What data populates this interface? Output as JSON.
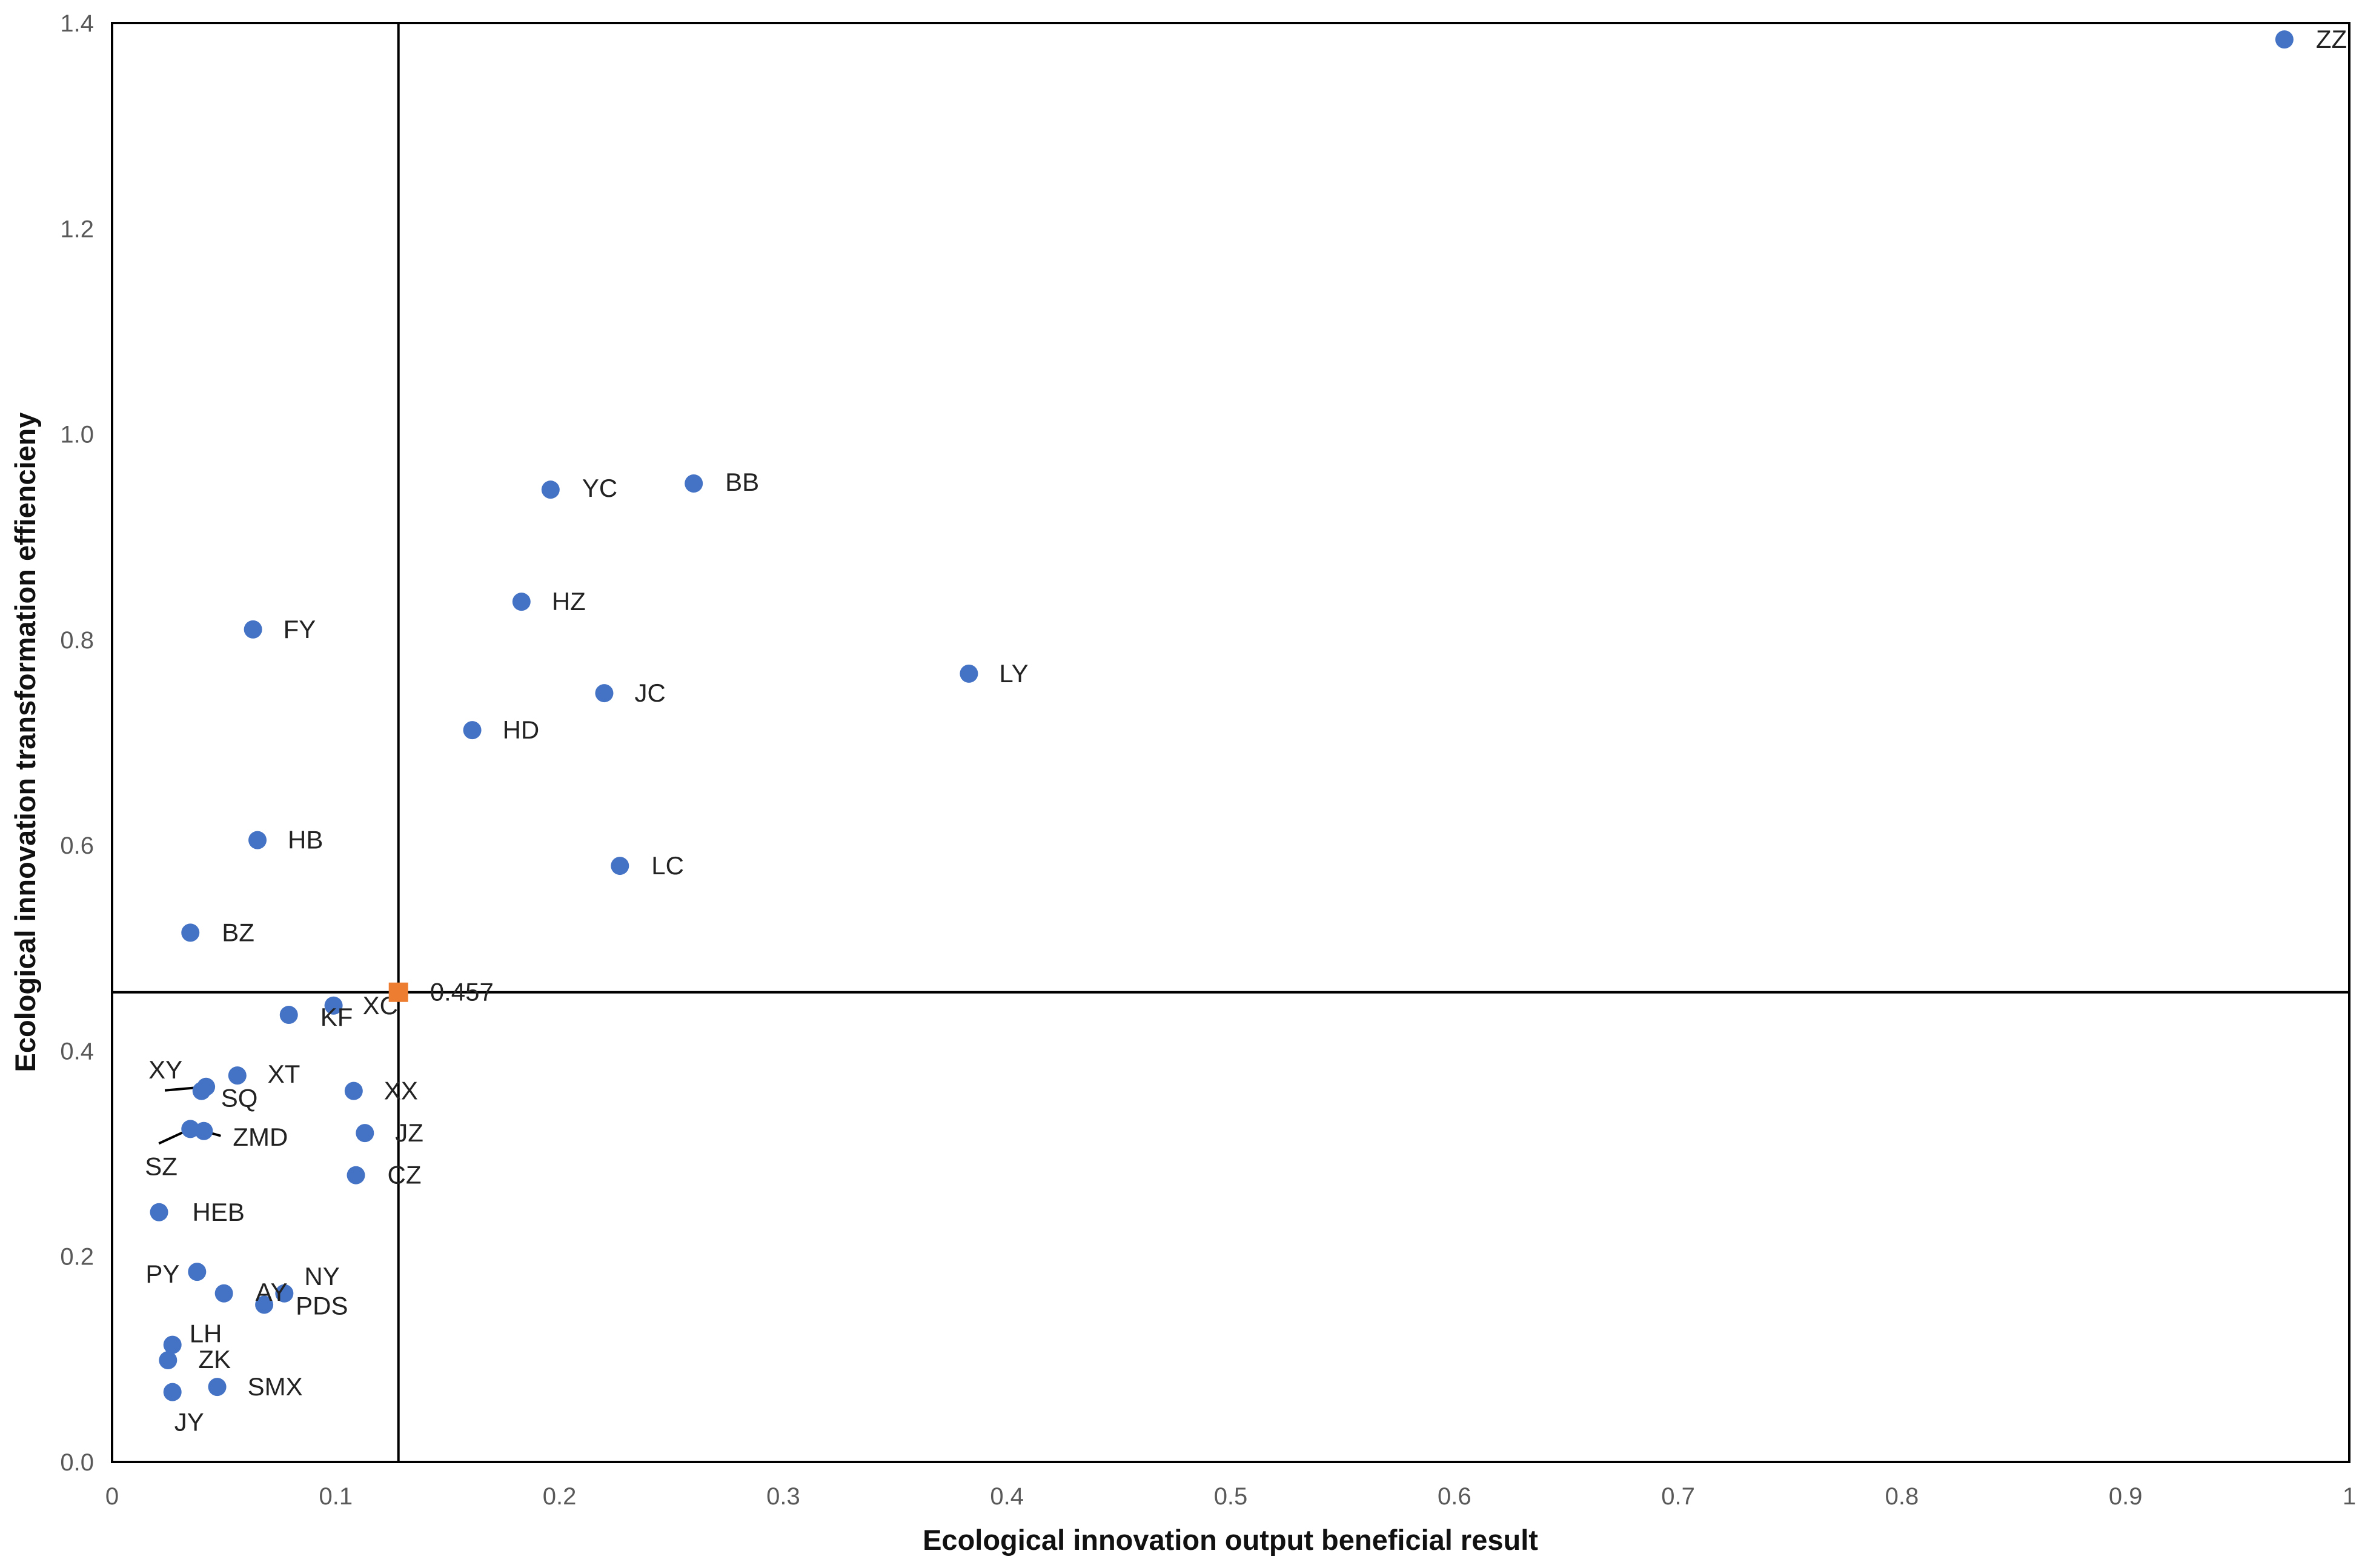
{
  "chart_data": {
    "type": "scatter",
    "title": "",
    "xlabel": "Ecological innovation output beneficial result",
    "ylabel": "Ecological innovation transformation effiencieny",
    "xlim": [
      0,
      1
    ],
    "ylim": [
      0,
      1.4
    ],
    "xticks": [
      "0",
      "0.1",
      "0.2",
      "0.3",
      "0.4",
      "0.5",
      "0.6",
      "0.7",
      "0.8",
      "0.9",
      "1"
    ],
    "yticks": [
      "0.0",
      "0.2",
      "0.4",
      "0.6",
      "0.8",
      "1.0",
      "1.2",
      "1.4"
    ],
    "grid": false,
    "legend": "none",
    "colors": {
      "points": "#4472C4",
      "reference": "#ED7D31",
      "lines": "#000000"
    },
    "reference_point": {
      "x": 0.128,
      "y": 0.457,
      "label": "0.457"
    },
    "reference_lines": {
      "x": 0.128,
      "y": 0.457
    },
    "points": [
      {
        "label": "ZZ",
        "x": 0.971,
        "y": 1.384
      },
      {
        "label": "BB",
        "x": 0.26,
        "y": 0.952
      },
      {
        "label": "YC",
        "x": 0.196,
        "y": 0.946
      },
      {
        "label": "HZ",
        "x": 0.183,
        "y": 0.837
      },
      {
        "label": "FY",
        "x": 0.063,
        "y": 0.81
      },
      {
        "label": "LY",
        "x": 0.383,
        "y": 0.767
      },
      {
        "label": "JC",
        "x": 0.22,
        "y": 0.748
      },
      {
        "label": "HD",
        "x": 0.161,
        "y": 0.712
      },
      {
        "label": "HB",
        "x": 0.065,
        "y": 0.605
      },
      {
        "label": "LC",
        "x": 0.227,
        "y": 0.58
      },
      {
        "label": "BZ",
        "x": 0.035,
        "y": 0.515
      },
      {
        "label": "XC",
        "x": 0.099,
        "y": 0.444
      },
      {
        "label": "KF",
        "x": 0.079,
        "y": 0.435
      },
      {
        "label": "XT",
        "x": 0.056,
        "y": 0.376
      },
      {
        "label": "XY",
        "x": 0.042,
        "y": 0.365
      },
      {
        "label": "SQ",
        "x": 0.04,
        "y": 0.361
      },
      {
        "label": "XX",
        "x": 0.108,
        "y": 0.361
      },
      {
        "label": "SZ",
        "x": 0.035,
        "y": 0.324
      },
      {
        "label": "ZMD",
        "x": 0.041,
        "y": 0.322
      },
      {
        "label": "JZ",
        "x": 0.113,
        "y": 0.32
      },
      {
        "label": "CZ",
        "x": 0.109,
        "y": 0.279
      },
      {
        "label": "HEB",
        "x": 0.021,
        "y": 0.243
      },
      {
        "label": "PY",
        "x": 0.038,
        "y": 0.185
      },
      {
        "label": "AY",
        "x": 0.05,
        "y": 0.164
      },
      {
        "label": "NY",
        "x": 0.077,
        "y": 0.164
      },
      {
        "label": "PDS",
        "x": 0.068,
        "y": 0.153
      },
      {
        "label": "LH",
        "x": 0.027,
        "y": 0.114
      },
      {
        "label": "ZK",
        "x": 0.025,
        "y": 0.099
      },
      {
        "label": "SMX",
        "x": 0.047,
        "y": 0.073
      },
      {
        "label": "JY",
        "x": 0.027,
        "y": 0.068
      }
    ]
  }
}
